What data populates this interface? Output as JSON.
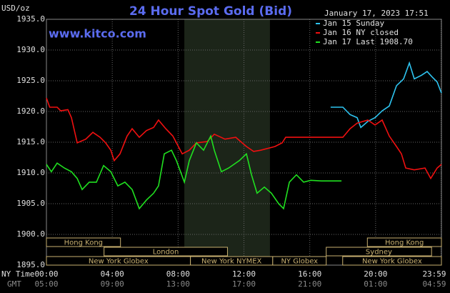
{
  "chart_data": {
    "type": "line",
    "title": "24 Hour Spot Gold (Bid)",
    "y_label": "USD/oz",
    "timestamp": "January 17, 2023 17:51",
    "site": "www.kitco.com",
    "x_row_labels": [
      "NY Time",
      "GMT"
    ],
    "xlim": [
      0,
      24
    ],
    "ylim": [
      1895,
      1935
    ],
    "yticks": [
      {
        "value": 1895,
        "label": "1895.0"
      },
      {
        "value": 1900,
        "label": "1900.0"
      },
      {
        "value": 1905,
        "label": "1905.0"
      },
      {
        "value": 1910,
        "label": "1910.0"
      },
      {
        "value": 1915,
        "label": "1915.0"
      },
      {
        "value": 1920,
        "label": "1920.0"
      },
      {
        "value": 1925,
        "label": "1925.0"
      },
      {
        "value": 1930,
        "label": "1930.0"
      },
      {
        "value": 1935,
        "label": "1935.0"
      }
    ],
    "xticks": [
      {
        "value": 0,
        "label": "00:00"
      },
      {
        "value": 4,
        "label": "04:00"
      },
      {
        "value": 8,
        "label": "08:00"
      },
      {
        "value": 12,
        "label": "12:00"
      },
      {
        "value": 16,
        "label": "16:00"
      },
      {
        "value": 20,
        "label": "20:00"
      },
      {
        "value": 23.98,
        "label": "23:59"
      }
    ],
    "xticks_gmt": [
      "05:00",
      "09:00",
      "13:00",
      "17:00",
      "21:00",
      "01:00",
      "04:59"
    ],
    "grid": true,
    "shaded_range": [
      8.38,
      13.58
    ],
    "sessions": [
      {
        "label": "Hong Kong",
        "start": 0,
        "end": 4.5,
        "row": 0
      },
      {
        "label": "London",
        "start": 3.5,
        "end": 11.0,
        "row": 1
      },
      {
        "label": "New York Globex",
        "start": 0,
        "end": 8.75,
        "row": 2
      },
      {
        "label": "New York NYMEX",
        "start": 8.75,
        "end": 13.75,
        "row": 2
      },
      {
        "label": "NY Globex",
        "start": 13.75,
        "end": 17.0,
        "row": 2
      },
      {
        "label": "Hong Kong",
        "start": 19.5,
        "end": 24,
        "row": 0
      },
      {
        "label": "Sydney",
        "start": 17.0,
        "end": 23.4,
        "row": 1
      },
      {
        "label": "New York Globex",
        "start": 18.0,
        "end": 24,
        "row": 2
      }
    ],
    "series": [
      {
        "name": "Jan 15 Sunday",
        "color": "#2ec4f0",
        "x": [
          17.27,
          18.01,
          18.45,
          18.88,
          19.1,
          19.53,
          19.97,
          20.4,
          20.83,
          21.27,
          21.7,
          22.05,
          22.35,
          22.79,
          23.13,
          23.44,
          23.74,
          24.0
        ],
        "values": [
          1920.7,
          1920.7,
          1919.5,
          1919.0,
          1917.4,
          1918.4,
          1919.0,
          1920.1,
          1920.9,
          1924.2,
          1925.3,
          1927.9,
          1925.3,
          1925.9,
          1926.5,
          1925.6,
          1924.8,
          1923.0
        ]
      },
      {
        "name": "Jan 16 NY closed",
        "color": "#f01010",
        "x": [
          0,
          0.2,
          0.65,
          0.87,
          1.3,
          1.52,
          1.87,
          2.39,
          2.82,
          3.26,
          3.6,
          3.91,
          4.12,
          4.47,
          4.9,
          5.21,
          5.64,
          6.08,
          6.51,
          6.81,
          7.25,
          7.68,
          8.25,
          8.68,
          9.11,
          9.77,
          10.2,
          10.85,
          11.5,
          12.15,
          12.59,
          13.02,
          13.89,
          14.32,
          14.54,
          18.01,
          18.45,
          18.88,
          19.53,
          19.97,
          20.4,
          20.83,
          21.27,
          21.57,
          21.83,
          22.35,
          23.0,
          23.35,
          23.74,
          24.0
        ],
        "values": [
          1922.2,
          1920.7,
          1920.7,
          1920.1,
          1920.3,
          1919.0,
          1914.9,
          1915.5,
          1916.6,
          1915.8,
          1914.9,
          1913.7,
          1912.0,
          1913.1,
          1916.0,
          1917.2,
          1915.8,
          1916.9,
          1917.4,
          1918.6,
          1917.2,
          1916.0,
          1913.1,
          1913.7,
          1914.9,
          1915.1,
          1916.3,
          1915.5,
          1915.8,
          1914.3,
          1913.5,
          1913.7,
          1914.3,
          1914.9,
          1915.8,
          1915.8,
          1917.2,
          1918.1,
          1918.6,
          1917.8,
          1918.6,
          1916.0,
          1914.3,
          1913.1,
          1910.8,
          1910.5,
          1910.8,
          1909.1,
          1910.8,
          1911.4
        ]
      },
      {
        "name": "Jan 17 Last 1908.70",
        "color": "#20e020",
        "x": [
          0,
          0.3,
          0.65,
          1.09,
          1.52,
          1.87,
          2.17,
          2.6,
          3.04,
          3.47,
          3.91,
          4.34,
          4.77,
          5.21,
          5.64,
          6.08,
          6.51,
          6.81,
          7.16,
          7.6,
          7.9,
          8.38,
          8.68,
          9.11,
          9.55,
          9.98,
          10.2,
          10.63,
          11.07,
          11.72,
          12.15,
          12.46,
          12.8,
          13.24,
          13.67,
          14.11,
          14.41,
          14.76,
          15.19,
          15.63,
          16.06,
          16.71,
          17.93
        ],
        "values": [
          1911.4,
          1910.2,
          1911.6,
          1910.8,
          1910.2,
          1909.1,
          1907.3,
          1908.5,
          1908.5,
          1911.2,
          1910.2,
          1907.9,
          1908.5,
          1907.3,
          1904.2,
          1905.6,
          1906.7,
          1907.9,
          1913.1,
          1913.7,
          1912.0,
          1908.5,
          1912.0,
          1914.9,
          1913.7,
          1916.0,
          1913.7,
          1910.2,
          1910.8,
          1912.0,
          1913.1,
          1909.7,
          1906.7,
          1907.7,
          1906.7,
          1905.0,
          1904.2,
          1908.5,
          1909.7,
          1908.5,
          1908.8,
          1908.7,
          1908.7
        ]
      }
    ]
  }
}
